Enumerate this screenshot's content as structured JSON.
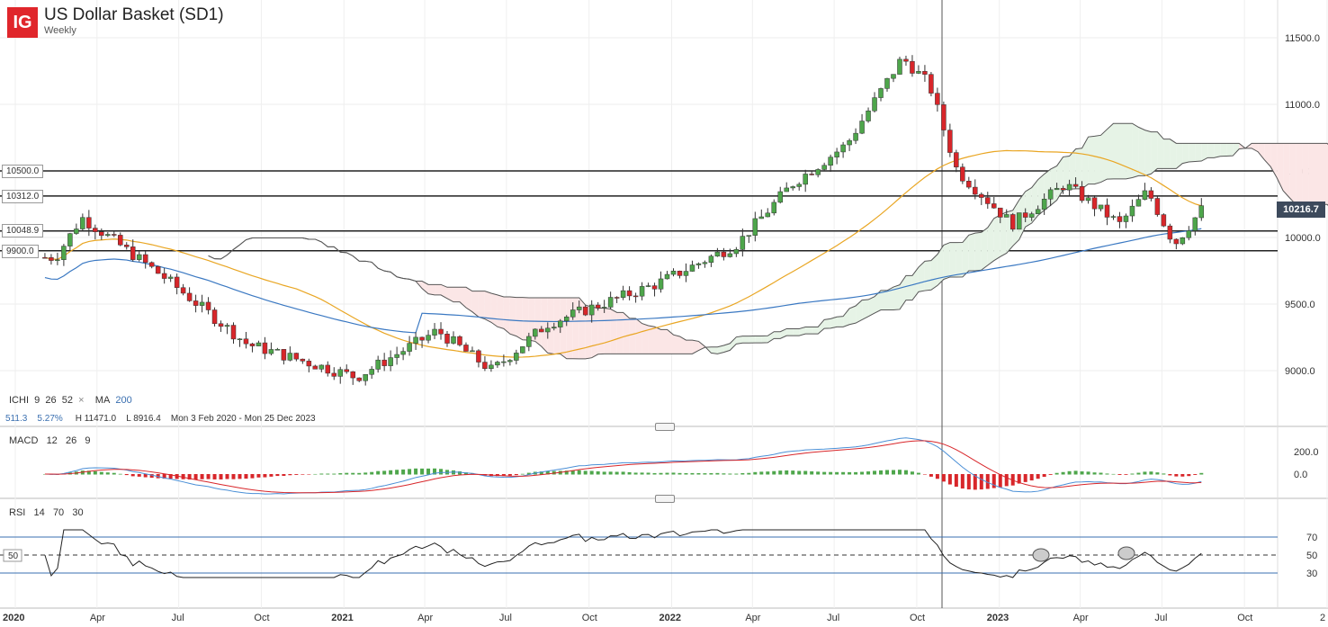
{
  "header": {
    "logo_text": "IG",
    "title": "US Dollar Basket (SD1)",
    "subtitle": "Weekly"
  },
  "indicators": {
    "ichi": {
      "name": "ICHI",
      "p1": "9",
      "p2": "26",
      "p3": "52",
      "close": "×"
    },
    "ma": {
      "name": "MA",
      "period": "200"
    },
    "stats": {
      "change": "511.3",
      "change_pct": "5.27%",
      "high": "H 11471.0",
      "low": "L 8916.4",
      "range": "Mon 3 Feb 2020 - Mon 25 Dec 2023"
    },
    "macd": {
      "name": "MACD",
      "p1": "12",
      "p2": "26",
      "p3": "9"
    },
    "rsi": {
      "name": "RSI",
      "p1": "14",
      "p2": "70",
      "p3": "30"
    }
  },
  "levels": [
    "10500.0",
    "10312.0",
    "10048.9",
    "9900.0"
  ],
  "current_price": "10216.7",
  "colors": {
    "up": "#4ea64b",
    "down": "#d8262a",
    "ma": "#e9a623",
    "ma200": "#3a78c2",
    "cloud_pos": "#e6f3e6",
    "cloud_neg": "#fbe6e6",
    "price_tag": "#3d4a5c"
  },
  "chart_data": {
    "type": "candlestick",
    "title": "US Dollar Basket (SD1)",
    "timeframe": "Weekly",
    "date_range": [
      "2020-02-03",
      "2023-12-25"
    ],
    "price_axis": {
      "ticks": [
        9000,
        9500,
        10000,
        10500,
        11000,
        11500
      ],
      "labels": [
        "9000.0",
        "9500.0",
        "10000.0",
        "10500.0",
        "11000.0",
        "11500.0"
      ],
      "range": [
        8650,
        11750
      ]
    },
    "time_axis": {
      "labels": [
        "2020",
        "Apr",
        "Jul",
        "Oct",
        "2021",
        "Apr",
        "Jul",
        "Oct",
        "2022",
        "Apr",
        "Jul",
        "Oct",
        "2023",
        "Apr",
        "Jul",
        "Oct",
        "2"
      ]
    },
    "key_closes": {
      "dates": [
        "2020-02",
        "2020-03",
        "2020-06",
        "2020-09",
        "2021-01",
        "2021-04",
        "2021-06",
        "2021-08",
        "2021-10",
        "2021-12",
        "2022-03",
        "2022-05",
        "2022-07",
        "2022-09",
        "2022-10",
        "2022-11",
        "2023-01",
        "2023-03",
        "2023-05",
        "2023-06",
        "2023-07",
        "2023-08"
      ],
      "values": [
        9850,
        10150,
        9700,
        9200,
        8950,
        9300,
        9000,
        9350,
        9500,
        9650,
        9950,
        10400,
        10700,
        11350,
        11150,
        10500,
        10100,
        10400,
        10100,
        10350,
        9950,
        10216.7
      ]
    },
    "macd_axis": {
      "ticks": [
        200,
        0
      ],
      "labels": [
        "200.0",
        "0.0"
      ]
    },
    "rsi_axis": {
      "ticks": [
        70,
        50,
        30
      ],
      "labels": [
        "70",
        "50",
        "30"
      ]
    }
  }
}
